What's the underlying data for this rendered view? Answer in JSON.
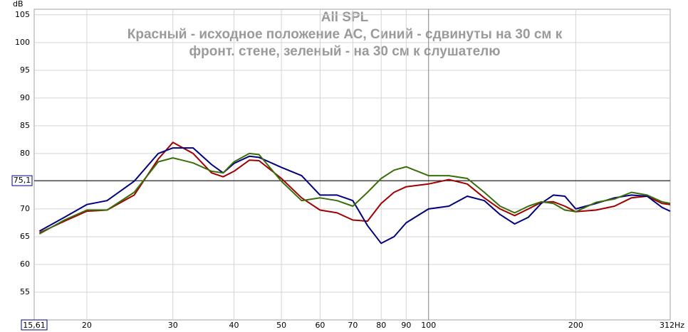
{
  "chart_data": {
    "type": "line",
    "title": "All SPL",
    "subtitle": [
      "Красный - исходное положение АС, Синий - сдвинуты на 30 см к",
      "фронт. стене, зеленый - на 30 см к слушателю"
    ],
    "y_label": "dB",
    "log_x": true,
    "grid": true,
    "xlim": [
      15.61,
      312
    ],
    "ylim": [
      50,
      106
    ],
    "xticks": [
      {
        "value": 15.61,
        "label": "15,61"
      },
      20,
      30,
      40,
      50,
      60,
      70,
      80,
      90,
      100,
      200,
      {
        "value": 312,
        "label": "312Hz"
      }
    ],
    "yticks": [
      55,
      60,
      65,
      70,
      75,
      80,
      85,
      90,
      95,
      100,
      105
    ],
    "reference_line": {
      "value": 75.1,
      "label": "75,1"
    },
    "x": [
      16,
      18,
      20,
      22,
      25,
      28,
      30,
      33,
      36,
      38,
      40,
      43,
      45,
      50,
      55,
      60,
      65,
      70,
      75,
      80,
      85,
      90,
      100,
      110,
      120,
      130,
      140,
      150,
      160,
      170,
      180,
      190,
      200,
      220,
      240,
      260,
      280,
      300,
      312
    ],
    "series": [
      {
        "name": "Красный",
        "color": "#a00000",
        "values": [
          65.7,
          67.8,
          69.6,
          69.8,
          72.5,
          79,
          82,
          80,
          76.5,
          75.8,
          76.8,
          78.8,
          78.7,
          75.5,
          72,
          69.8,
          69.3,
          68,
          67.8,
          71,
          73,
          74,
          74.5,
          75.3,
          74.5,
          72,
          70,
          68.8,
          70,
          71.2,
          71.3,
          70.5,
          69.5,
          69.8,
          70.5,
          72,
          72.3,
          71,
          70.8
        ]
      },
      {
        "name": "Синий",
        "color": "#00007f",
        "values": [
          66,
          68.5,
          70.8,
          71.5,
          75,
          80,
          81,
          81,
          78,
          76.5,
          78.2,
          79.5,
          79.3,
          77.5,
          76,
          72.5,
          72.5,
          71.5,
          67,
          63.8,
          65,
          67.5,
          70,
          70.5,
          72.3,
          71.5,
          69,
          67.3,
          68.5,
          71,
          72.5,
          72.3,
          70,
          71,
          72,
          72.5,
          72.3,
          70.3,
          69.6
        ]
      },
      {
        "name": "зеленый",
        "color": "#3a6e0a",
        "values": [
          65.5,
          68,
          69.8,
          69.8,
          73,
          78.5,
          79.2,
          78.3,
          76.8,
          76.5,
          78.5,
          80,
          79.8,
          75,
          71.5,
          72,
          71.5,
          70.5,
          73,
          75.5,
          77,
          77.6,
          76,
          76,
          75.5,
          73,
          70.5,
          69.3,
          70.5,
          71.3,
          71,
          69.8,
          69.5,
          71.2,
          71.8,
          73,
          72.5,
          71.3,
          71
        ]
      }
    ]
  }
}
